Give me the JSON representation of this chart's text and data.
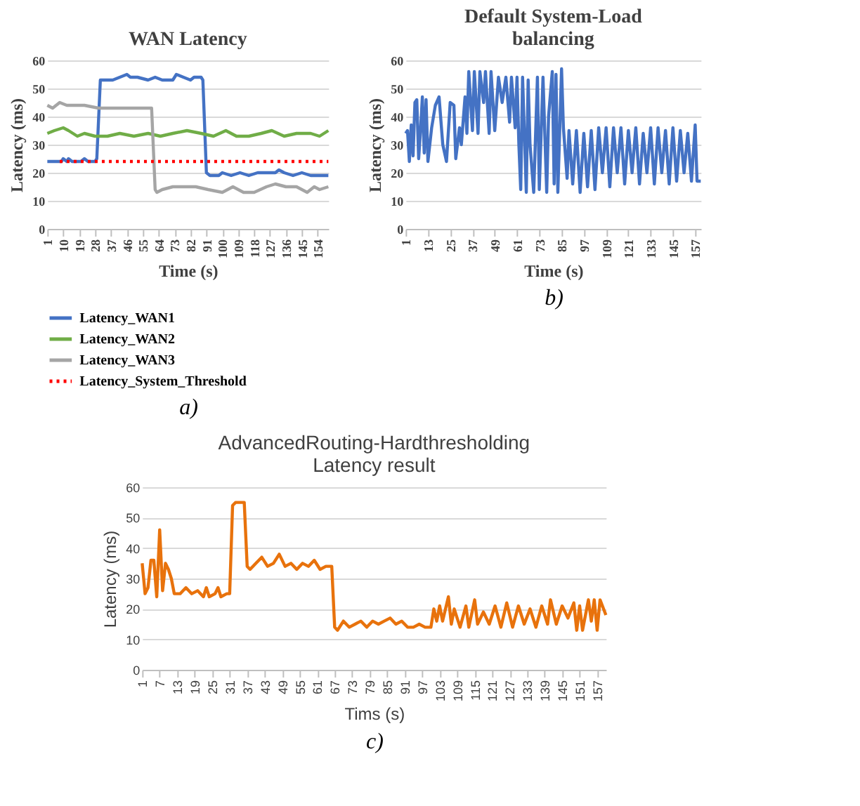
{
  "chart_data": [
    {
      "type": "line",
      "title": "WAN Latency",
      "xlabel": "Time (s)",
      "ylabel": "Latency (ms)",
      "xlim": [
        1,
        160
      ],
      "xticks": [
        1,
        10,
        19,
        28,
        37,
        46,
        55,
        64,
        73,
        82,
        91,
        100,
        109,
        118,
        127,
        136,
        145,
        154
      ],
      "ylim": [
        0,
        60
      ],
      "yticks": [
        0,
        10,
        20,
        30,
        40,
        50,
        60
      ],
      "grid": "y",
      "legend": "bottom",
      "marker": "none",
      "annotations": [
        "a)"
      ],
      "series": [
        {
          "name": "Latency_WAN1",
          "color": "#4472c4",
          "line_style": "solid",
          "x": [
            1,
            5,
            9,
            10,
            12,
            13,
            15,
            20,
            22,
            24,
            28,
            29,
            31,
            33,
            38,
            42,
            46,
            48,
            52,
            58,
            62,
            66,
            72,
            74,
            78,
            82,
            84,
            88,
            89,
            91,
            93,
            98,
            100,
            105,
            110,
            115,
            120,
            125,
            130,
            132,
            135,
            140,
            145,
            150,
            155,
            160
          ],
          "values": [
            24,
            24,
            24,
            25,
            24,
            25,
            24,
            24,
            25,
            24,
            24,
            25,
            53,
            53,
            53,
            54,
            55,
            54,
            54,
            53,
            54,
            53,
            53,
            55,
            54,
            53,
            54,
            54,
            53,
            20,
            19,
            19,
            20,
            19,
            20,
            19,
            20,
            20,
            20,
            21,
            20,
            19,
            20,
            19,
            19,
            19
          ]
        },
        {
          "name": "Latency_WAN2",
          "color": "#70ad47",
          "line_style": "solid",
          "x": [
            1,
            5,
            10,
            13,
            18,
            22,
            28,
            35,
            42,
            50,
            58,
            65,
            72,
            80,
            88,
            95,
            102,
            108,
            115,
            122,
            128,
            135,
            142,
            150,
            155,
            160
          ],
          "values": [
            34,
            35,
            36,
            35,
            33,
            34,
            33,
            33,
            34,
            33,
            34,
            33,
            34,
            35,
            34,
            33,
            35,
            33,
            33,
            34,
            35,
            33,
            34,
            34,
            33,
            35
          ]
        },
        {
          "name": "Latency_WAN3",
          "color": "#a5a5a5",
          "line_style": "solid",
          "x": [
            1,
            4,
            8,
            12,
            16,
            22,
            30,
            38,
            45,
            52,
            58,
            60,
            62,
            63,
            66,
            72,
            78,
            85,
            92,
            100,
            106,
            112,
            118,
            125,
            130,
            136,
            142,
            148,
            152,
            155,
            160
          ],
          "values": [
            44,
            43,
            45,
            44,
            44,
            44,
            43,
            43,
            43,
            43,
            43,
            43,
            14,
            13,
            14,
            15,
            15,
            15,
            14,
            13,
            15,
            13,
            13,
            15,
            16,
            15,
            15,
            13,
            15,
            14,
            15
          ]
        },
        {
          "name": "Latency_System_Threshold",
          "color": "#ff0000",
          "line_style": "dotted",
          "x": [
            8,
            160
          ],
          "values": [
            24,
            24
          ]
        }
      ]
    },
    {
      "type": "line",
      "title": "Default System-Load\nbalancing",
      "xlabel": "Time (s)",
      "ylabel": "Latency (ms)",
      "xlim": [
        1,
        160
      ],
      "xticks": [
        1,
        13,
        25,
        37,
        49,
        61,
        73,
        85,
        97,
        109,
        121,
        133,
        145,
        157
      ],
      "ylim": [
        0,
        60
      ],
      "yticks": [
        0,
        10,
        20,
        30,
        40,
        50,
        60
      ],
      "grid": "y",
      "marker": "none",
      "annotations": [
        "b)"
      ],
      "series": [
        {
          "color": "#4472c4",
          "line_style": "solid",
          "x": [
            1,
            2,
            3,
            4,
            5,
            6,
            7,
            8,
            9,
            10,
            11,
            12,
            13,
            15,
            17,
            19,
            21,
            23,
            25,
            27,
            28,
            30,
            31,
            33,
            34,
            35,
            37,
            38,
            40,
            41,
            43,
            44,
            46,
            47,
            49,
            51,
            53,
            55,
            57,
            58,
            60,
            61,
            62,
            63,
            64,
            66,
            67,
            68,
            70,
            72,
            73,
            75,
            77,
            78,
            80,
            81,
            82,
            83,
            85,
            86,
            88,
            89,
            91,
            93,
            95,
            97,
            99,
            101,
            103,
            105,
            107,
            109,
            111,
            113,
            115,
            117,
            119,
            121,
            123,
            125,
            127,
            129,
            131,
            133,
            135,
            137,
            139,
            141,
            143,
            145,
            147,
            149,
            151,
            153,
            155,
            157,
            158,
            160
          ],
          "values": [
            34,
            35,
            24,
            37,
            26,
            45,
            46,
            25,
            35,
            47,
            27,
            46,
            24,
            36,
            44,
            47,
            30,
            24,
            45,
            44,
            25,
            36,
            30,
            47,
            34,
            56,
            35,
            56,
            34,
            56,
            45,
            56,
            34,
            56,
            35,
            54,
            45,
            54,
            38,
            54,
            36,
            54,
            30,
            14,
            54,
            13,
            53,
            30,
            13,
            54,
            14,
            54,
            13,
            40,
            56,
            16,
            55,
            13,
            57,
            36,
            18,
            35,
            16,
            35,
            13,
            34,
            15,
            35,
            14,
            36,
            20,
            36,
            15,
            36,
            20,
            36,
            16,
            35,
            20,
            36,
            16,
            34,
            20,
            36,
            16,
            36,
            20,
            35,
            16,
            36,
            17,
            35,
            20,
            34,
            17,
            37,
            17,
            17
          ]
        }
      ]
    },
    {
      "type": "line",
      "title": "AdvancedRouting-Hardthresholding\nLatency result",
      "xlabel": "Tims (s)",
      "ylabel": "Latency (ms)",
      "xlim": [
        1,
        160
      ],
      "xticks": [
        1,
        7,
        13,
        19,
        25,
        31,
        37,
        43,
        49,
        55,
        61,
        67,
        73,
        79,
        85,
        91,
        97,
        103,
        109,
        115,
        121,
        127,
        133,
        139,
        145,
        151,
        157
      ],
      "ylim": [
        0,
        60
      ],
      "yticks": [
        0,
        10,
        20,
        30,
        40,
        50,
        60
      ],
      "grid": "y",
      "marker": "none",
      "annotations": [
        "c)"
      ],
      "series": [
        {
          "color": "#e8720c",
          "line_style": "solid",
          "x": [
            1,
            2,
            3,
            4,
            5,
            6,
            7,
            8,
            9,
            10,
            11,
            12,
            14,
            16,
            18,
            20,
            22,
            23,
            24,
            26,
            27,
            28,
            30,
            31,
            32,
            33,
            36,
            37,
            38,
            40,
            42,
            44,
            46,
            48,
            50,
            52,
            54,
            56,
            58,
            60,
            62,
            64,
            66,
            67,
            68,
            70,
            72,
            74,
            76,
            78,
            80,
            82,
            84,
            86,
            88,
            90,
            92,
            94,
            96,
            98,
            100,
            101,
            102,
            103,
            104,
            106,
            107,
            108,
            110,
            112,
            113,
            115,
            116,
            118,
            120,
            122,
            124,
            126,
            128,
            130,
            132,
            134,
            136,
            138,
            140,
            141,
            143,
            145,
            147,
            149,
            150,
            151,
            152,
            154,
            155,
            156,
            157,
            158,
            160
          ],
          "values": [
            35,
            25,
            27,
            36,
            36,
            24,
            46,
            26,
            35,
            33,
            30,
            25,
            25,
            27,
            25,
            26,
            24,
            27,
            24,
            25,
            27,
            24,
            25,
            25,
            54,
            55,
            55,
            34,
            33,
            35,
            37,
            34,
            35,
            38,
            34,
            35,
            33,
            35,
            34,
            36,
            33,
            34,
            34,
            14,
            13,
            16,
            14,
            15,
            16,
            14,
            16,
            15,
            16,
            17,
            15,
            16,
            14,
            14,
            15,
            14,
            14,
            20,
            16,
            21,
            16,
            24,
            15,
            20,
            14,
            21,
            14,
            23,
            15,
            19,
            15,
            21,
            14,
            22,
            14,
            21,
            15,
            20,
            14,
            21,
            15,
            23,
            15,
            21,
            17,
            22,
            13,
            21,
            13,
            23,
            16,
            23,
            13,
            23,
            18
          ]
        }
      ]
    }
  ]
}
